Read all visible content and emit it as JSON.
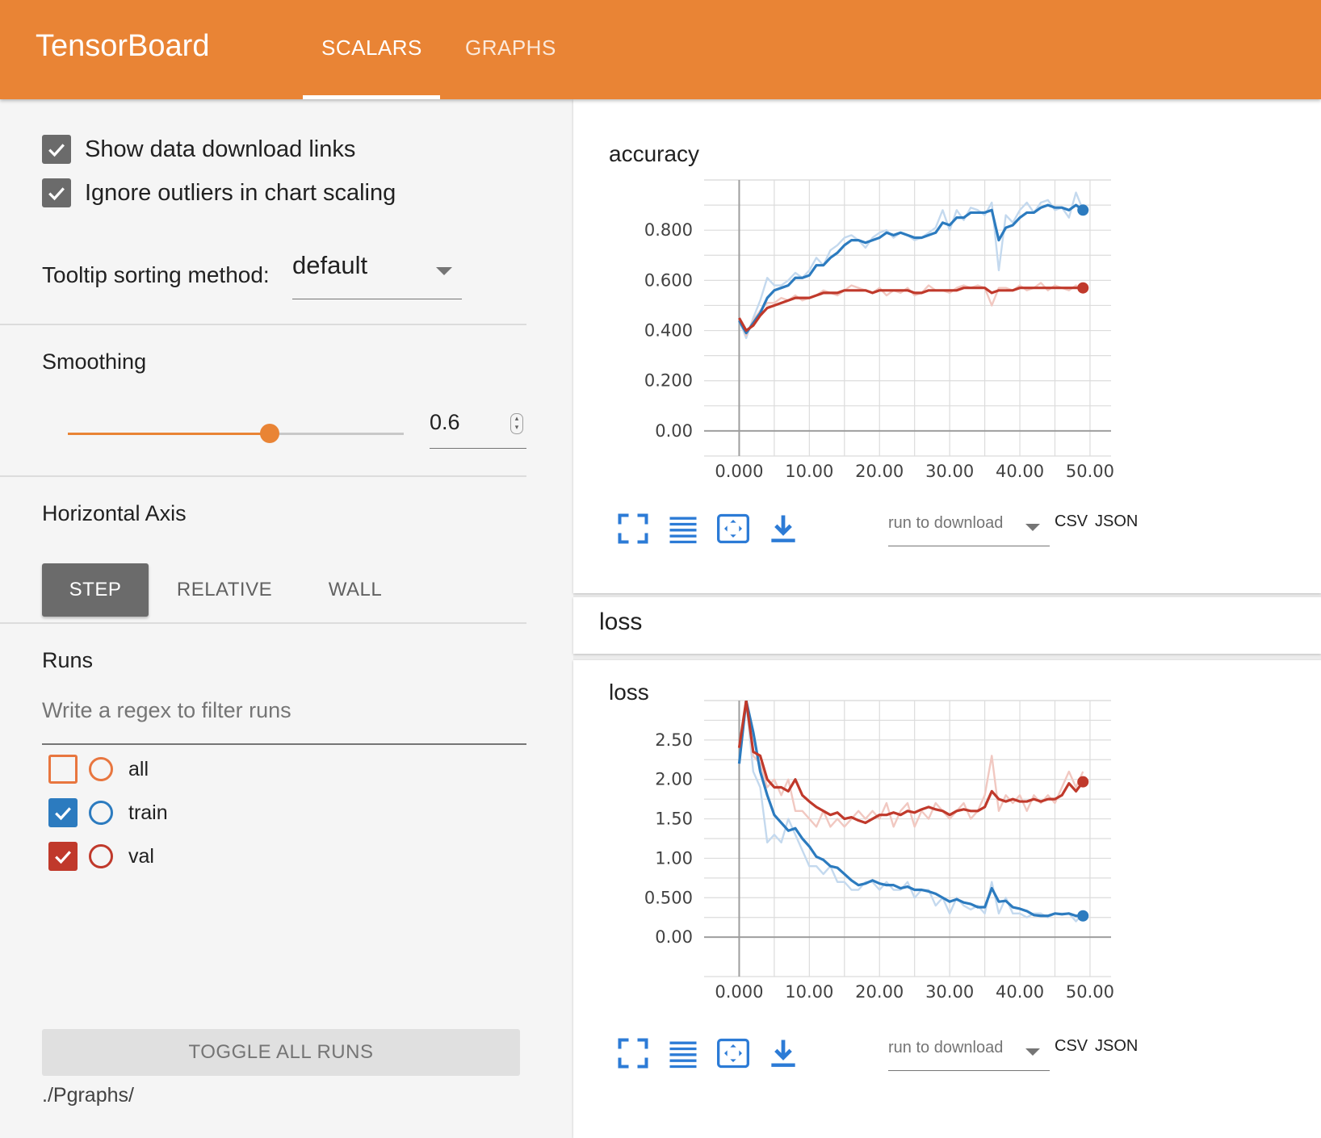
{
  "header": {
    "title": "TensorBoard",
    "tabs": [
      {
        "label": "SCALARS",
        "active": true
      },
      {
        "label": "GRAPHS",
        "active": false
      }
    ]
  },
  "sidebar": {
    "options": [
      {
        "label": "Show data download links",
        "checked": true
      },
      {
        "label": "Ignore outliers in chart scaling",
        "checked": true
      }
    ],
    "tooltip_sorting": {
      "label": "Tooltip sorting method:",
      "value": "default"
    },
    "smoothing": {
      "label": "Smoothing",
      "value": "0.6",
      "fraction": 0.6
    },
    "horizontal_axis": {
      "label": "Horizontal Axis",
      "buttons": [
        {
          "label": "STEP",
          "active": true
        },
        {
          "label": "RELATIVE",
          "active": false
        },
        {
          "label": "WALL",
          "active": false
        }
      ]
    },
    "runs": {
      "label": "Runs",
      "filter_placeholder": "Write a regex to filter runs",
      "items": [
        {
          "label": "all",
          "checked": false,
          "color": "#e8763f"
        },
        {
          "label": "train",
          "checked": true,
          "color": "#2c7bbf"
        },
        {
          "label": "val",
          "checked": true,
          "color": "#c0392b"
        }
      ]
    },
    "toggle_all": "TOGGLE ALL RUNS",
    "logdir": "./Pgraphs/"
  },
  "colors": {
    "accent": "#e98435",
    "train": "#2c7bbf",
    "train_raw": "#c4d9ee",
    "val": "#c0392b",
    "val_raw": "#f1c8c1"
  },
  "cards": [
    {
      "title": "accuracy",
      "download_placeholder": "run to download",
      "csv": "CSV",
      "json": "JSON"
    },
    {
      "title": "loss",
      "download_placeholder": "run to download",
      "csv": "CSV",
      "json": "JSON"
    }
  ],
  "group": {
    "title": "loss"
  },
  "chart_data": [
    {
      "type": "line",
      "title": "accuracy",
      "xlabel": "",
      "ylabel": "",
      "xlim": [
        -5,
        53
      ],
      "ylim": [
        -0.1,
        1.0
      ],
      "x_ticks": [
        "0.000",
        "10.00",
        "20.00",
        "30.00",
        "40.00",
        "50.00"
      ],
      "x_tick_values": [
        0,
        10,
        20,
        30,
        40,
        50
      ],
      "y_ticks": [
        "0.00",
        "0.200",
        "0.400",
        "0.600",
        "0.800"
      ],
      "y_tick_values": [
        0,
        0.2,
        0.4,
        0.6,
        0.8
      ],
      "grid": true,
      "series": [
        {
          "name": "train",
          "x": [
            0,
            1,
            2,
            3,
            4,
            5,
            6,
            7,
            8,
            9,
            10,
            11,
            12,
            13,
            14,
            15,
            16,
            17,
            18,
            19,
            20,
            21,
            22,
            23,
            24,
            25,
            26,
            27,
            28,
            29,
            30,
            31,
            32,
            33,
            34,
            35,
            36,
            37,
            38,
            39,
            40,
            41,
            42,
            43,
            44,
            45,
            46,
            47,
            48,
            49
          ],
          "raw": [
            0.44,
            0.37,
            0.45,
            0.52,
            0.61,
            0.58,
            0.58,
            0.6,
            0.63,
            0.61,
            0.64,
            0.69,
            0.66,
            0.72,
            0.74,
            0.77,
            0.78,
            0.76,
            0.73,
            0.77,
            0.79,
            0.8,
            0.77,
            0.79,
            0.78,
            0.76,
            0.77,
            0.79,
            0.81,
            0.88,
            0.8,
            0.88,
            0.84,
            0.89,
            0.88,
            0.86,
            0.91,
            0.64,
            0.86,
            0.83,
            0.88,
            0.91,
            0.87,
            0.91,
            0.92,
            0.88,
            0.89,
            0.85,
            0.95,
            0.88
          ],
          "smoothed": [
            0.44,
            0.39,
            0.43,
            0.47,
            0.53,
            0.56,
            0.57,
            0.58,
            0.61,
            0.61,
            0.62,
            0.66,
            0.66,
            0.69,
            0.71,
            0.74,
            0.76,
            0.76,
            0.75,
            0.76,
            0.77,
            0.79,
            0.78,
            0.79,
            0.78,
            0.77,
            0.77,
            0.78,
            0.79,
            0.83,
            0.82,
            0.85,
            0.85,
            0.87,
            0.87,
            0.87,
            0.88,
            0.76,
            0.81,
            0.82,
            0.85,
            0.87,
            0.87,
            0.89,
            0.9,
            0.89,
            0.89,
            0.88,
            0.9,
            0.88
          ]
        },
        {
          "name": "val",
          "x": [
            0,
            1,
            2,
            3,
            4,
            5,
            6,
            7,
            8,
            9,
            10,
            11,
            12,
            13,
            14,
            15,
            16,
            17,
            18,
            19,
            20,
            21,
            22,
            23,
            24,
            25,
            26,
            27,
            28,
            29,
            30,
            31,
            32,
            33,
            34,
            35,
            36,
            37,
            38,
            39,
            40,
            41,
            42,
            43,
            44,
            45,
            46,
            47,
            48,
            49
          ],
          "raw": [
            0.45,
            0.38,
            0.44,
            0.48,
            0.51,
            0.51,
            0.53,
            0.52,
            0.54,
            0.52,
            0.53,
            0.54,
            0.56,
            0.55,
            0.54,
            0.56,
            0.58,
            0.57,
            0.56,
            0.55,
            0.57,
            0.54,
            0.56,
            0.55,
            0.57,
            0.54,
            0.55,
            0.58,
            0.56,
            0.56,
            0.55,
            0.57,
            0.58,
            0.57,
            0.58,
            0.57,
            0.5,
            0.57,
            0.57,
            0.56,
            0.58,
            0.56,
            0.57,
            0.59,
            0.56,
            0.58,
            0.57,
            0.56,
            0.58,
            0.56
          ],
          "smoothed": [
            0.45,
            0.4,
            0.42,
            0.46,
            0.49,
            0.5,
            0.51,
            0.52,
            0.53,
            0.53,
            0.53,
            0.54,
            0.55,
            0.55,
            0.55,
            0.56,
            0.56,
            0.56,
            0.56,
            0.55,
            0.56,
            0.56,
            0.56,
            0.56,
            0.56,
            0.55,
            0.55,
            0.56,
            0.56,
            0.56,
            0.56,
            0.56,
            0.57,
            0.57,
            0.57,
            0.57,
            0.55,
            0.56,
            0.56,
            0.56,
            0.57,
            0.57,
            0.57,
            0.57,
            0.57,
            0.57,
            0.57,
            0.57,
            0.57,
            0.57
          ]
        }
      ]
    },
    {
      "type": "line",
      "title": "loss",
      "xlabel": "",
      "ylabel": "",
      "xlim": [
        -5,
        53
      ],
      "ylim": [
        -0.5,
        3.0
      ],
      "x_ticks": [
        "0.000",
        "10.00",
        "20.00",
        "30.00",
        "40.00",
        "50.00"
      ],
      "x_tick_values": [
        0,
        10,
        20,
        30,
        40,
        50
      ],
      "y_ticks": [
        "0.00",
        "0.500",
        "1.00",
        "1.50",
        "2.00",
        "2.50"
      ],
      "y_tick_values": [
        0,
        0.5,
        1.0,
        1.5,
        2.0,
        2.5
      ],
      "grid": true,
      "series": [
        {
          "name": "train",
          "x": [
            0,
            1,
            2,
            3,
            4,
            5,
            6,
            7,
            8,
            9,
            10,
            11,
            12,
            13,
            14,
            15,
            16,
            17,
            18,
            19,
            20,
            21,
            22,
            23,
            24,
            25,
            26,
            27,
            28,
            29,
            30,
            31,
            32,
            33,
            34,
            35,
            36,
            37,
            38,
            39,
            40,
            41,
            42,
            43,
            44,
            45,
            46,
            47,
            48,
            49
          ],
          "raw": [
            2.2,
            3.0,
            2.1,
            1.9,
            1.2,
            1.3,
            1.2,
            1.5,
            1.3,
            1.1,
            0.9,
            0.9,
            0.8,
            0.9,
            0.7,
            0.7,
            0.6,
            0.6,
            0.7,
            0.7,
            0.6,
            0.7,
            0.6,
            0.6,
            0.7,
            0.5,
            0.6,
            0.6,
            0.4,
            0.5,
            0.3,
            0.5,
            0.4,
            0.35,
            0.4,
            0.3,
            0.7,
            0.3,
            0.5,
            0.3,
            0.3,
            0.25,
            0.3,
            0.3,
            0.25,
            0.3,
            0.3,
            0.3,
            0.2,
            0.3
          ],
          "smoothed": [
            2.2,
            3.0,
            2.6,
            2.1,
            1.8,
            1.55,
            1.45,
            1.35,
            1.38,
            1.25,
            1.15,
            1.02,
            0.98,
            0.9,
            0.88,
            0.8,
            0.72,
            0.66,
            0.68,
            0.72,
            0.68,
            0.66,
            0.66,
            0.62,
            0.64,
            0.6,
            0.6,
            0.58,
            0.55,
            0.5,
            0.45,
            0.48,
            0.44,
            0.42,
            0.38,
            0.38,
            0.62,
            0.45,
            0.46,
            0.38,
            0.36,
            0.33,
            0.28,
            0.27,
            0.27,
            0.3,
            0.29,
            0.3,
            0.27,
            0.27
          ]
        },
        {
          "name": "val",
          "x": [
            0,
            1,
            2,
            3,
            4,
            5,
            6,
            7,
            8,
            9,
            10,
            11,
            12,
            13,
            14,
            15,
            16,
            17,
            18,
            19,
            20,
            21,
            22,
            23,
            24,
            25,
            26,
            27,
            28,
            29,
            30,
            31,
            32,
            33,
            34,
            35,
            36,
            37,
            38,
            39,
            40,
            41,
            42,
            43,
            44,
            45,
            46,
            47,
            48,
            49
          ],
          "raw": [
            2.4,
            3.0,
            2.3,
            2.2,
            1.9,
            2.0,
            1.8,
            2.0,
            1.6,
            1.6,
            1.5,
            1.4,
            1.6,
            1.4,
            1.5,
            1.4,
            1.5,
            1.6,
            1.5,
            1.6,
            1.5,
            1.7,
            1.4,
            1.6,
            1.7,
            1.4,
            1.6,
            1.5,
            1.7,
            1.6,
            1.5,
            1.6,
            1.7,
            1.5,
            1.6,
            1.8,
            2.3,
            1.6,
            1.8,
            1.7,
            1.8,
            1.6,
            1.8,
            1.7,
            1.8,
            1.7,
            1.9,
            2.1,
            1.9,
            2.1
          ],
          "smoothed": [
            2.4,
            3.0,
            2.35,
            2.3,
            2.0,
            1.9,
            1.9,
            1.85,
            2.0,
            1.8,
            1.72,
            1.65,
            1.6,
            1.55,
            1.58,
            1.5,
            1.52,
            1.48,
            1.45,
            1.5,
            1.55,
            1.55,
            1.58,
            1.55,
            1.6,
            1.58,
            1.62,
            1.65,
            1.62,
            1.6,
            1.55,
            1.6,
            1.62,
            1.6,
            1.6,
            1.65,
            1.85,
            1.75,
            1.72,
            1.75,
            1.72,
            1.72,
            1.75,
            1.72,
            1.75,
            1.75,
            1.8,
            1.95,
            1.85,
            1.97
          ]
        }
      ]
    }
  ]
}
